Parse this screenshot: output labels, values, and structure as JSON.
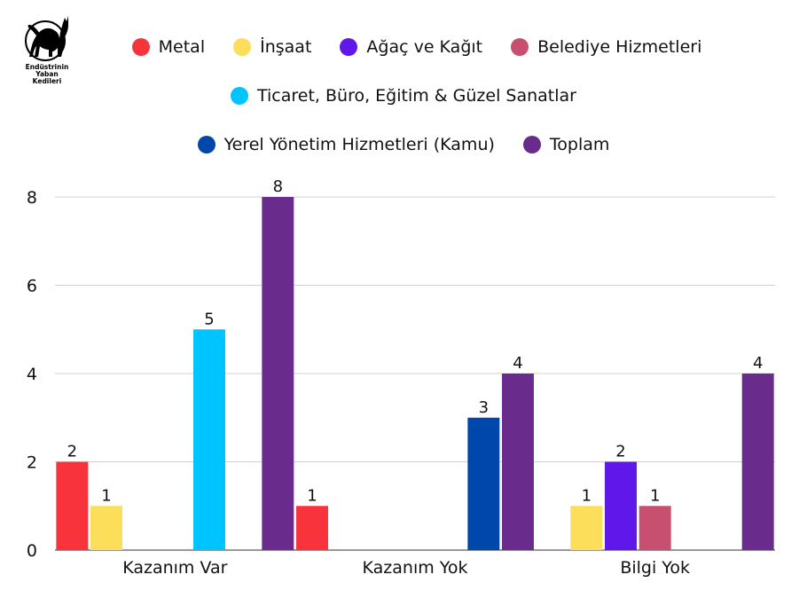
{
  "logo": {
    "icon": "black-cat-icon",
    "lines": [
      "Endüstrinin",
      "Yaban",
      "Kedileri"
    ]
  },
  "chart_data": {
    "type": "bar",
    "categories": [
      "Kazanım Var",
      "Kazanım Yok",
      "Bilgi Yok"
    ],
    "series": [
      {
        "name": "Metal",
        "color": "#f8333c",
        "values": [
          2,
          1,
          0
        ]
      },
      {
        "name": "İnşaat",
        "color": "#fcde5a",
        "values": [
          1,
          0,
          1
        ]
      },
      {
        "name": "Ağaç ve Kağıt",
        "color": "#5f17ea",
        "values": [
          0,
          0,
          2
        ]
      },
      {
        "name": "Belediye Hizmetleri",
        "color": "#c74f6f",
        "values": [
          0,
          0,
          1
        ]
      },
      {
        "name": "Ticaret, Büro, Eğitim & Güzel Sanatlar",
        "color": "#00c4ff",
        "values": [
          5,
          0,
          0
        ]
      },
      {
        "name": "Yerel Yönetim Hizmetleri (Kamu)",
        "color": "#0047ab",
        "values": [
          0,
          3,
          0
        ]
      },
      {
        "name": "Toplam",
        "color": "#6a2c8c",
        "values": [
          8,
          4,
          4
        ]
      }
    ],
    "yticks": [
      0,
      2,
      4,
      6,
      8
    ],
    "ylim": [
      0,
      8
    ],
    "grid": true,
    "legend_position": "top"
  }
}
